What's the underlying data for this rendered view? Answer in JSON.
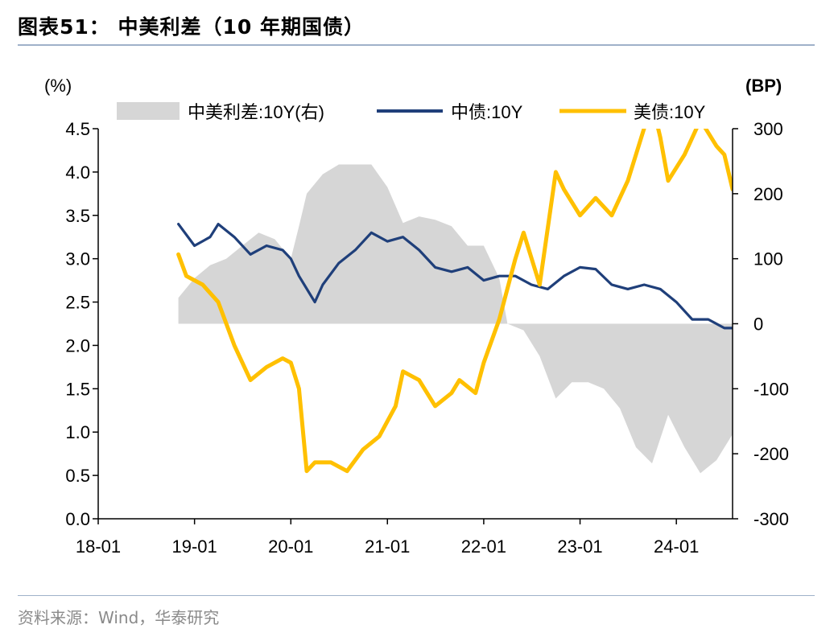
{
  "title": "图表51：  中美利差（10 年期国债）",
  "source": "资料来源：Wind，华泰研究",
  "colors": {
    "spread": "#d6d6d6",
    "cn": "#1f3f7a",
    "us": "#ffc000",
    "rule": "#9fb1c9"
  },
  "chart_data": {
    "type": "line",
    "left_unit": "(%)",
    "right_unit": "(BP)",
    "left_axis": {
      "min": 0.0,
      "max": 4.5,
      "ticks": [
        "0.0",
        "0.5",
        "1.0",
        "1.5",
        "2.0",
        "2.5",
        "3.0",
        "3.5",
        "4.0",
        "4.5"
      ]
    },
    "right_axis": {
      "min": -300,
      "max": 300,
      "ticks": [
        "-300",
        "-200",
        "-100",
        "0",
        "100",
        "200",
        "300"
      ]
    },
    "x_axis": {
      "ticks": [
        "18-01",
        "19-01",
        "20-01",
        "21-01",
        "22-01",
        "23-01",
        "24-01"
      ]
    },
    "legend_position": "top",
    "series": [
      {
        "name": "中美利差:10Y(右)",
        "kind": "area",
        "axis": "right",
        "points": [
          [
            "2018-11",
            40
          ],
          [
            "2019-01",
            70
          ],
          [
            "2019-03",
            90
          ],
          [
            "2019-05",
            100
          ],
          [
            "2019-07",
            120
          ],
          [
            "2019-09",
            140
          ],
          [
            "2019-11",
            130
          ],
          [
            "2020-01",
            100
          ],
          [
            "2020-02",
            150
          ],
          [
            "2020-03",
            200
          ],
          [
            "2020-05",
            230
          ],
          [
            "2020-07",
            245
          ],
          [
            "2020-09",
            245
          ],
          [
            "2020-11",
            245
          ],
          [
            "2021-01",
            210
          ],
          [
            "2021-03",
            155
          ],
          [
            "2021-05",
            165
          ],
          [
            "2021-07",
            160
          ],
          [
            "2021-09",
            150
          ],
          [
            "2021-11",
            120
          ],
          [
            "2022-01",
            120
          ],
          [
            "2022-03",
            70
          ],
          [
            "2022-04",
            0
          ],
          [
            "2022-06",
            -10
          ],
          [
            "2022-08",
            -50
          ],
          [
            "2022-10",
            -115
          ],
          [
            "2022-12",
            -90
          ],
          [
            "2023-02",
            -90
          ],
          [
            "2023-04",
            -100
          ],
          [
            "2023-06",
            -130
          ],
          [
            "2023-08",
            -190
          ],
          [
            "2023-10",
            -215
          ],
          [
            "2023-12",
            -140
          ],
          [
            "2024-02",
            -190
          ],
          [
            "2024-04",
            -230
          ],
          [
            "2024-06",
            -210
          ],
          [
            "2024-08",
            -170
          ]
        ]
      },
      {
        "name": "中债:10Y",
        "kind": "line",
        "axis": "left",
        "points": [
          [
            "2018-11",
            3.4
          ],
          [
            "2019-01",
            3.15
          ],
          [
            "2019-03",
            3.25
          ],
          [
            "2019-04",
            3.4
          ],
          [
            "2019-06",
            3.25
          ],
          [
            "2019-08",
            3.05
          ],
          [
            "2019-10",
            3.15
          ],
          [
            "2019-12",
            3.1
          ],
          [
            "2020-01",
            3.0
          ],
          [
            "2020-02",
            2.8
          ],
          [
            "2020-04",
            2.5
          ],
          [
            "2020-05",
            2.7
          ],
          [
            "2020-07",
            2.95
          ],
          [
            "2020-09",
            3.1
          ],
          [
            "2020-11",
            3.3
          ],
          [
            "2021-01",
            3.2
          ],
          [
            "2021-03",
            3.25
          ],
          [
            "2021-05",
            3.1
          ],
          [
            "2021-07",
            2.9
          ],
          [
            "2021-09",
            2.85
          ],
          [
            "2021-11",
            2.9
          ],
          [
            "2022-01",
            2.75
          ],
          [
            "2022-03",
            2.8
          ],
          [
            "2022-05",
            2.8
          ],
          [
            "2022-07",
            2.7
          ],
          [
            "2022-09",
            2.65
          ],
          [
            "2022-11",
            2.8
          ],
          [
            "2023-01",
            2.9
          ],
          [
            "2023-03",
            2.88
          ],
          [
            "2023-05",
            2.7
          ],
          [
            "2023-07",
            2.65
          ],
          [
            "2023-09",
            2.7
          ],
          [
            "2023-11",
            2.65
          ],
          [
            "2024-01",
            2.5
          ],
          [
            "2024-03",
            2.3
          ],
          [
            "2024-05",
            2.3
          ],
          [
            "2024-07",
            2.2
          ],
          [
            "2024-08",
            2.2
          ]
        ]
      },
      {
        "name": "美债:10Y",
        "kind": "line",
        "axis": "left",
        "points": [
          [
            "2018-11",
            3.05
          ],
          [
            "2018-12",
            2.8
          ],
          [
            "2019-02",
            2.7
          ],
          [
            "2019-04",
            2.5
          ],
          [
            "2019-06",
            2.0
          ],
          [
            "2019-08",
            1.6
          ],
          [
            "2019-10",
            1.75
          ],
          [
            "2019-12",
            1.85
          ],
          [
            "2020-01",
            1.8
          ],
          [
            "2020-02",
            1.5
          ],
          [
            "2020-03",
            0.55
          ],
          [
            "2020-04",
            0.65
          ],
          [
            "2020-06",
            0.65
          ],
          [
            "2020-08",
            0.55
          ],
          [
            "2020-10",
            0.8
          ],
          [
            "2020-12",
            0.95
          ],
          [
            "2021-02",
            1.3
          ],
          [
            "2021-03",
            1.7
          ],
          [
            "2021-05",
            1.6
          ],
          [
            "2021-07",
            1.3
          ],
          [
            "2021-09",
            1.45
          ],
          [
            "2021-10",
            1.6
          ],
          [
            "2021-12",
            1.45
          ],
          [
            "2022-01",
            1.8
          ],
          [
            "2022-03",
            2.3
          ],
          [
            "2022-05",
            3.0
          ],
          [
            "2022-06",
            3.3
          ],
          [
            "2022-08",
            2.7
          ],
          [
            "2022-10",
            4.0
          ],
          [
            "2022-11",
            3.8
          ],
          [
            "2023-01",
            3.5
          ],
          [
            "2023-03",
            3.7
          ],
          [
            "2023-05",
            3.5
          ],
          [
            "2023-07",
            3.9
          ],
          [
            "2023-08",
            4.2
          ],
          [
            "2023-10",
            4.8
          ],
          [
            "2023-11",
            4.4
          ],
          [
            "2023-12",
            3.9
          ],
          [
            "2024-02",
            4.2
          ],
          [
            "2024-04",
            4.6
          ],
          [
            "2024-06",
            4.3
          ],
          [
            "2024-07",
            4.2
          ],
          [
            "2024-08",
            3.8
          ]
        ]
      }
    ]
  }
}
